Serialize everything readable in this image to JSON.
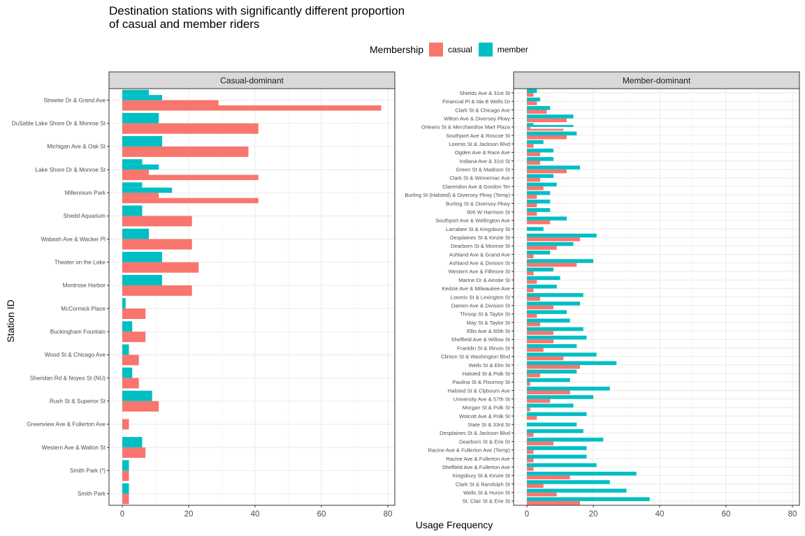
{
  "title_line1": "Destination stations with significantly different proportion",
  "title_line2": "of casual and member riders",
  "legend": {
    "title": "Membership",
    "items": [
      {
        "label": "casual",
        "color": "#F8766D"
      },
      {
        "label": "member",
        "color": "#00BFC4"
      }
    ]
  },
  "ylabel": "Station ID",
  "xlabel": "Usage Frequency",
  "chart_data": [
    {
      "type": "bar",
      "orientation": "horizontal",
      "facet": "Casual-dominant",
      "xlim": [
        0,
        80
      ],
      "x_ticks": [
        0,
        20,
        40,
        60,
        80
      ],
      "grid": true,
      "categories": [
        "Streeter Dr & Grand Ave",
        "DuSable Lake Shore Dr & Monroe St",
        "Michigan Ave & Oak St",
        "Lake Shore Dr & Monroe St",
        "Millennium Park",
        "Shedd Aquarium",
        "Wabash Ave & Wacker Pl",
        "Theater on the Lake",
        "Montrose Harbor",
        "McCormick Place",
        "Buckingham Fountain",
        "Wood St & Chicago Ave",
        "Sheridan Rd & Noyes St (NU)",
        "Rush St & Superior St",
        "Greenview Ave & Fullerton Ave",
        "Western Ave & Walton St",
        "Smith Park (*)",
        "Smith Park"
      ],
      "series": [
        {
          "name": "casual",
          "values": [
            [
              29,
              78
            ],
            [
              41
            ],
            [
              38
            ],
            [
              8,
              41
            ],
            [
              11,
              41
            ],
            [
              21
            ],
            [
              21
            ],
            [
              23
            ],
            [
              21
            ],
            [
              7
            ],
            [
              7
            ],
            [
              5
            ],
            [
              5
            ],
            [
              11
            ],
            [
              2
            ],
            [
              7
            ],
            [
              2
            ],
            [
              2
            ]
          ]
        },
        {
          "name": "member",
          "values": [
            [
              8,
              12
            ],
            [
              11
            ],
            [
              12
            ],
            [
              6,
              11
            ],
            [
              6,
              15
            ],
            [
              6
            ],
            [
              8
            ],
            [
              12
            ],
            [
              12
            ],
            [
              1
            ],
            [
              3
            ],
            [
              2
            ],
            [
              3
            ],
            [
              9
            ],
            [],
            [
              6
            ],
            [
              2
            ],
            [
              2
            ]
          ]
        }
      ]
    },
    {
      "type": "bar",
      "orientation": "horizontal",
      "facet": "Member-dominant",
      "xlim": [
        0,
        80
      ],
      "x_ticks": [
        0,
        20,
        40,
        60,
        80
      ],
      "grid": true,
      "categories": [
        "Shields Ave & 31st St",
        "Financial Pl & Ida B Wells Dr",
        "Clark St & Chicago Ave",
        "Wilton Ave & Diversey Pkwy",
        "Orleans St & Merchandise Mart Plaza",
        "Southport Ave & Roscoe St",
        "Loomis St & Jackson Blvd",
        "Ogden Ave & Race Ave",
        "Indiana Ave & 31st St",
        "Green St & Madison St",
        "Clark St & Winnemac Ave",
        "Clarendon Ave & Gordon Ter",
        "Burling St (Halsted) & Diversey Pkwy (Temp)",
        "Burling St & Diversey Pkwy",
        "900 W Harrison St",
        "Southport Ave & Wellington Ave",
        "Larrabee St & Kingsbury St",
        "Desplaines St & Kinzie St",
        "Dearborn St & Monroe St",
        "Ashland Ave & Grand Ave",
        "Ashland Ave & Division St",
        "Western Ave & Fillmore St",
        "Marine Dr & Ainslie St",
        "Kedzie Ave & Milwaukee Ave",
        "Loomis St & Lexington St",
        "Damen Ave & Division St",
        "Throop St & Taylor St",
        "May St & Taylor St",
        "Ellis Ave & 60th St",
        "Sheffield Ave & Willow St",
        "Franklin St & Illinois St",
        "Clinton St & Washington Blvd",
        "Wells St & Elm St",
        "Halsted St & Polk St",
        "Paulina St & Flournoy St",
        "Halsted St & Clybourn Ave",
        "University Ave & 57th St",
        "Morgan St & Polk St",
        "Wolcott Ave & Polk St",
        "State St & 33rd St",
        "Desplaines St & Jackson Blvd",
        "Dearborn St & Erie St",
        "Racine Ave & Fullerton Ave (Temp)",
        "Racine Ave & Fullerton Ave",
        "Sheffield Ave & Fullerton Ave",
        "Kingsbury St & Kinzie St",
        "Clark St & Randolph St",
        "Wells St & Huron St",
        "St. Clair St & Erie St"
      ],
      "series": [
        {
          "name": "casual",
          "values": [
            [
              2
            ],
            [
              3
            ],
            [
              6
            ],
            [
              12
            ],
            [
              1,
              11
            ],
            [
              12
            ],
            [
              2
            ],
            [
              4
            ],
            [
              4
            ],
            [
              12
            ],
            [
              4
            ],
            [
              5
            ],
            [
              3
            ],
            [
              3
            ],
            [
              3
            ],
            [
              7
            ],
            [],
            [
              16
            ],
            [
              9
            ],
            [
              2
            ],
            [
              15
            ],
            [
              2
            ],
            [
              3
            ],
            [
              2
            ],
            [
              4
            ],
            [
              8
            ],
            [
              3
            ],
            [
              4
            ],
            [
              8
            ],
            [
              8
            ],
            [
              5
            ],
            [
              11
            ],
            [
              16
            ],
            [
              4
            ],
            [
              1
            ],
            [
              13
            ],
            [
              7
            ],
            [
              1
            ],
            [
              3
            ],
            [],
            [
              2
            ],
            [
              8
            ],
            [
              2
            ],
            [
              2
            ],
            [
              2
            ],
            [
              13
            ],
            [
              5
            ],
            [
              9
            ],
            [
              16
            ]
          ]
        },
        {
          "name": "member",
          "values": [
            [
              3
            ],
            [
              4
            ],
            [
              7
            ],
            [
              14
            ],
            [
              2,
              14
            ],
            [
              15
            ],
            [
              5
            ],
            [
              8
            ],
            [
              8
            ],
            [
              16
            ],
            [
              8
            ],
            [
              9
            ],
            [
              7
            ],
            [
              7
            ],
            [
              7
            ],
            [
              12
            ],
            [
              5
            ],
            [
              21
            ],
            [
              14
            ],
            [
              7
            ],
            [
              20
            ],
            [
              8
            ],
            [
              10
            ],
            [
              9
            ],
            [
              17
            ],
            [
              16
            ],
            [
              12
            ],
            [
              13
            ],
            [
              17
            ],
            [
              18
            ],
            [
              15
            ],
            [
              21
            ],
            [
              27
            ],
            [
              15
            ],
            [
              13
            ],
            [
              25
            ],
            [
              20
            ],
            [
              14
            ],
            [
              18
            ],
            [
              15
            ],
            [
              17
            ],
            [
              23
            ],
            [
              18
            ],
            [
              18
            ],
            [
              21
            ],
            [
              33
            ],
            [
              25
            ],
            [
              30
            ],
            [
              37
            ]
          ]
        }
      ]
    }
  ]
}
